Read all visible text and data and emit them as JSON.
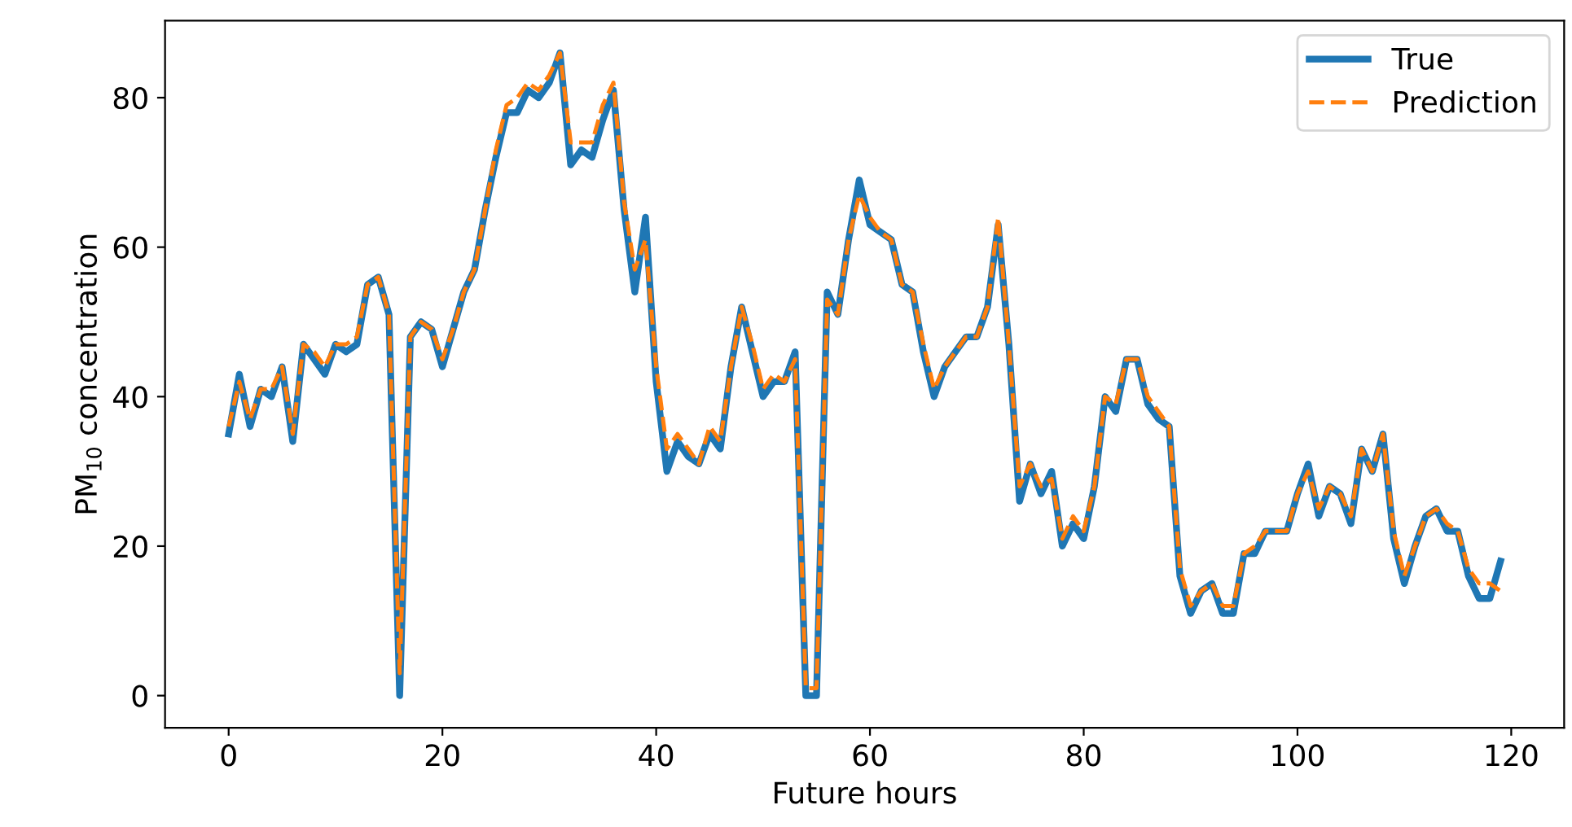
{
  "chart_data": {
    "type": "line",
    "xlabel": "Future hours",
    "ylabel": "PM$_{10}$ concentration",
    "x": [
      0,
      1,
      2,
      3,
      4,
      5,
      6,
      7,
      8,
      9,
      10,
      11,
      12,
      13,
      14,
      15,
      16,
      17,
      18,
      19,
      20,
      21,
      22,
      23,
      24,
      25,
      26,
      27,
      28,
      29,
      30,
      31,
      32,
      33,
      34,
      35,
      36,
      37,
      38,
      39,
      40,
      41,
      42,
      43,
      44,
      45,
      46,
      47,
      48,
      49,
      50,
      51,
      52,
      53,
      54,
      55,
      56,
      57,
      58,
      59,
      60,
      61,
      62,
      63,
      64,
      65,
      66,
      67,
      68,
      69,
      70,
      71,
      72,
      73,
      74,
      75,
      76,
      77,
      78,
      79,
      80,
      81,
      82,
      83,
      84,
      85,
      86,
      87,
      88,
      89,
      90,
      91,
      92,
      93,
      94,
      95,
      96,
      97,
      98,
      99,
      100,
      101,
      102,
      103,
      104,
      105,
      106,
      107,
      108,
      109,
      110,
      111,
      112,
      113,
      114,
      115,
      116,
      117,
      118,
      119
    ],
    "series": [
      {
        "name": "True",
        "color": "#1f77b4",
        "line_style": "solid",
        "values": [
          35,
          43,
          36,
          41,
          40,
          44,
          34,
          47,
          45,
          43,
          47,
          46,
          47,
          55,
          56,
          51,
          0,
          48,
          50,
          49,
          44,
          49,
          54,
          57,
          65,
          72,
          78,
          78,
          81,
          80,
          82,
          86,
          71,
          73,
          72,
          77,
          81,
          65,
          54,
          64,
          42,
          30,
          34,
          32,
          31,
          35,
          33,
          44,
          52,
          46,
          40,
          42,
          42,
          46,
          0,
          0,
          54,
          51,
          61,
          69,
          63,
          62,
          61,
          55,
          54,
          46,
          40,
          44,
          46,
          48,
          48,
          52,
          63,
          47,
          26,
          31,
          27,
          30,
          20,
          23,
          21,
          28,
          40,
          38,
          45,
          45,
          39,
          37,
          36,
          16,
          11,
          14,
          15,
          11,
          11,
          19,
          19,
          22,
          22,
          22,
          27,
          31,
          24,
          28,
          27,
          23,
          33,
          30,
          35,
          21,
          15,
          20,
          24,
          25,
          22,
          22,
          16,
          13,
          13,
          18
        ]
      },
      {
        "name": "Prediction",
        "color": "#ff7f0e",
        "line_style": "dashed",
        "values": [
          36,
          42,
          37,
          41,
          41,
          44,
          35,
          47,
          46,
          44,
          47,
          47,
          48,
          55,
          56,
          51,
          3,
          48,
          50,
          49,
          45,
          49,
          54,
          57,
          65,
          73,
          79,
          80,
          82,
          81,
          83,
          86,
          74,
          74,
          74,
          79,
          82,
          66,
          57,
          61,
          44,
          33,
          35,
          33,
          31,
          36,
          34,
          44,
          52,
          47,
          41,
          43,
          42,
          45,
          1,
          1,
          53,
          51,
          61,
          67,
          64,
          62,
          61,
          55,
          54,
          47,
          41,
          44,
          46,
          48,
          48,
          52,
          64,
          47,
          28,
          31,
          28,
          29,
          21,
          24,
          22,
          28,
          40,
          39,
          45,
          45,
          40,
          38,
          36,
          17,
          12,
          14,
          15,
          12,
          12,
          19,
          20,
          22,
          22,
          22,
          27,
          30,
          25,
          28,
          27,
          24,
          33,
          30,
          35,
          22,
          16,
          20,
          24,
          25,
          23,
          22,
          17,
          15,
          15,
          14
        ]
      }
    ],
    "xlim": [
      -5.95,
      124.95
    ],
    "ylim": [
      -4.3,
      90.3
    ],
    "xticks": [
      0,
      20,
      40,
      60,
      80,
      100,
      120
    ],
    "yticks": [
      0,
      20,
      40,
      60,
      80
    ],
    "legend": "top right",
    "grid": false
  }
}
